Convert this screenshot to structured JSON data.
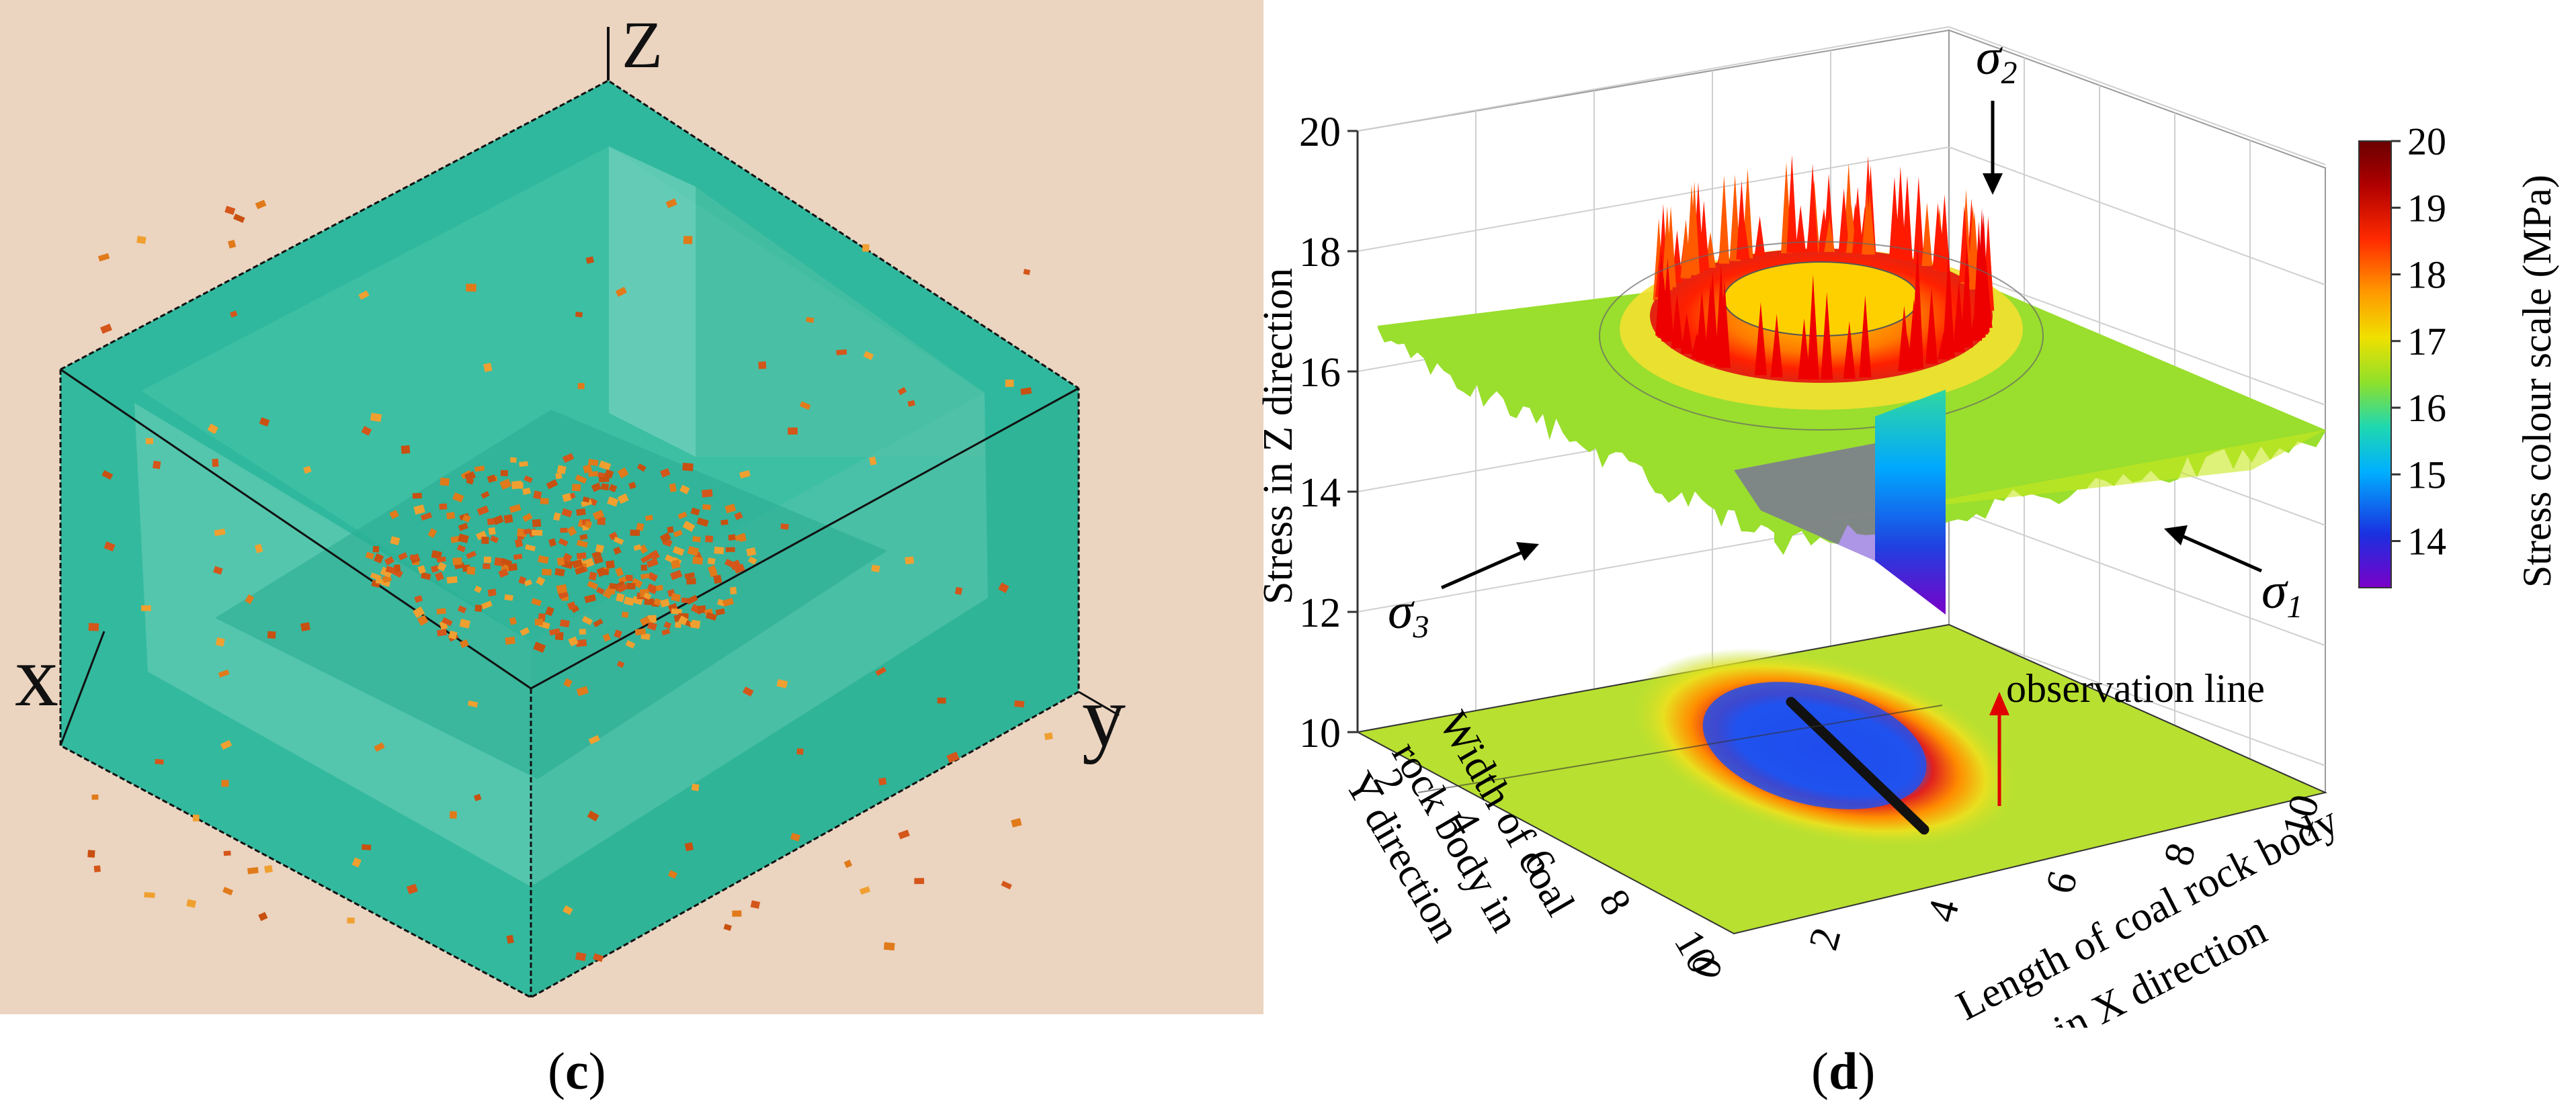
{
  "panel_c": {
    "axis_labels": {
      "z": "Z",
      "x": "x",
      "y": "y"
    },
    "caption": {
      "open": "(",
      "letter": "c",
      "close": ")"
    },
    "colors": {
      "background": "#ebd4c0",
      "block_face": "#2fb79c",
      "block_light": "#63ccb4",
      "crack": "#e07a1a"
    }
  },
  "panel_d": {
    "caption": {
      "open": "(",
      "letter": "d",
      "close": ")"
    },
    "z_axis_title": "Stress in Z direction",
    "x_axis_title_line1": "Length of coal rock body",
    "x_axis_title_line2": "in X direction",
    "y_axis_title_line1": "Width of coal",
    "y_axis_title_line2": "rock body in",
    "y_axis_title_line3": "Y direction",
    "colorbar_title": "Stress colour scale (MPa)",
    "observation_line_label": "observation line",
    "stress_labels": {
      "sigma1_symbol": "σ",
      "sigma1_sub": "1",
      "sigma2_symbol": "σ",
      "sigma2_sub": "2",
      "sigma3_symbol": "σ",
      "sigma3_sub": "3"
    }
  },
  "chart_data": {
    "type": "surface",
    "title": "",
    "xlabel": "Length of coal rock body in X direction",
    "ylabel": "Width of coal rock body in Y direction",
    "zlabel": "Stress in Z direction",
    "x_range": [
      0,
      10
    ],
    "y_range": [
      0,
      10
    ],
    "z_range": [
      10,
      20
    ],
    "x_ticks": [
      "0",
      "2",
      "4",
      "6",
      "8",
      "10"
    ],
    "y_ticks": [
      "2",
      "4",
      "6",
      "8",
      "10"
    ],
    "z_ticks": [
      "10",
      "12",
      "14",
      "16",
      "18",
      "20"
    ],
    "colorbar": {
      "label": "Stress colour scale (MPa)",
      "range": [
        13.3,
        20
      ],
      "ticks": [
        "14",
        "15",
        "16",
        "17",
        "18",
        "19",
        "20"
      ],
      "colors": [
        "#7a00c8",
        "#1a30e0",
        "#00b0ff",
        "#1fd8b0",
        "#8fe02a",
        "#f0e000",
        "#ff9a00",
        "#ff2a00",
        "#b00000",
        "#6a0000"
      ]
    },
    "surface": {
      "background_level": 16,
      "ring_peak": 18.5,
      "center_minimum": 13.5,
      "ring_center_x": 5,
      "ring_center_y": 5
    }
  }
}
